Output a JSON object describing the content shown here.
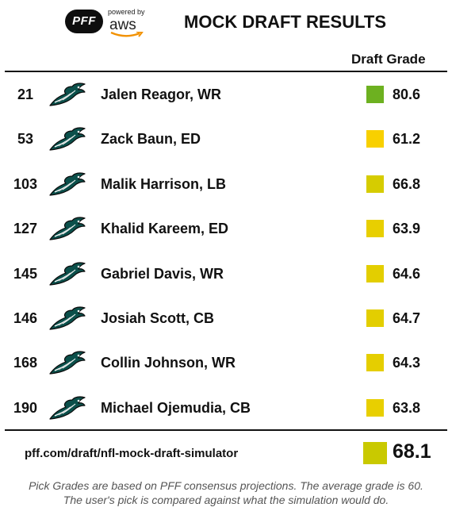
{
  "header": {
    "pff_logo_text": "PFF",
    "aws_powered_by": "powered by",
    "aws_word": "aws",
    "title": "MOCK DRAFT RESULTS"
  },
  "table": {
    "grade_column_header": "Draft Grade",
    "team_logo_icon": "eagles-icon",
    "rows": [
      {
        "pick": "21",
        "player": "Jalen Reagor, WR",
        "grade": "80.6",
        "grade_color": "#6db120"
      },
      {
        "pick": "53",
        "player": "Zack Baun, ED",
        "grade": "61.2",
        "grade_color": "#f8d000"
      },
      {
        "pick": "103",
        "player": "Malik Harrison, LB",
        "grade": "66.8",
        "grade_color": "#d6cc00"
      },
      {
        "pick": "127",
        "player": "Khalid Kareem, ED",
        "grade": "63.9",
        "grade_color": "#e8cf00"
      },
      {
        "pick": "145",
        "player": "Gabriel Davis, WR",
        "grade": "64.6",
        "grade_color": "#e3ce00"
      },
      {
        "pick": "146",
        "player": "Josiah Scott, CB",
        "grade": "64.7",
        "grade_color": "#e3ce00"
      },
      {
        "pick": "168",
        "player": "Collin Johnson, WR",
        "grade": "64.3",
        "grade_color": "#e5ce00"
      },
      {
        "pick": "190",
        "player": "Michael Ojemudia, CB",
        "grade": "63.8",
        "grade_color": "#e8cf00"
      }
    ]
  },
  "footer": {
    "url": "pff.com/draft/nfl-mock-draft-simulator",
    "average_grade": "68.1",
    "average_grade_color": "#c9c900",
    "note_line1": "Pick Grades are based on PFF consensus projections. The average grade is 60.",
    "note_line2": "The user's pick is compared against what the simulation would do."
  }
}
